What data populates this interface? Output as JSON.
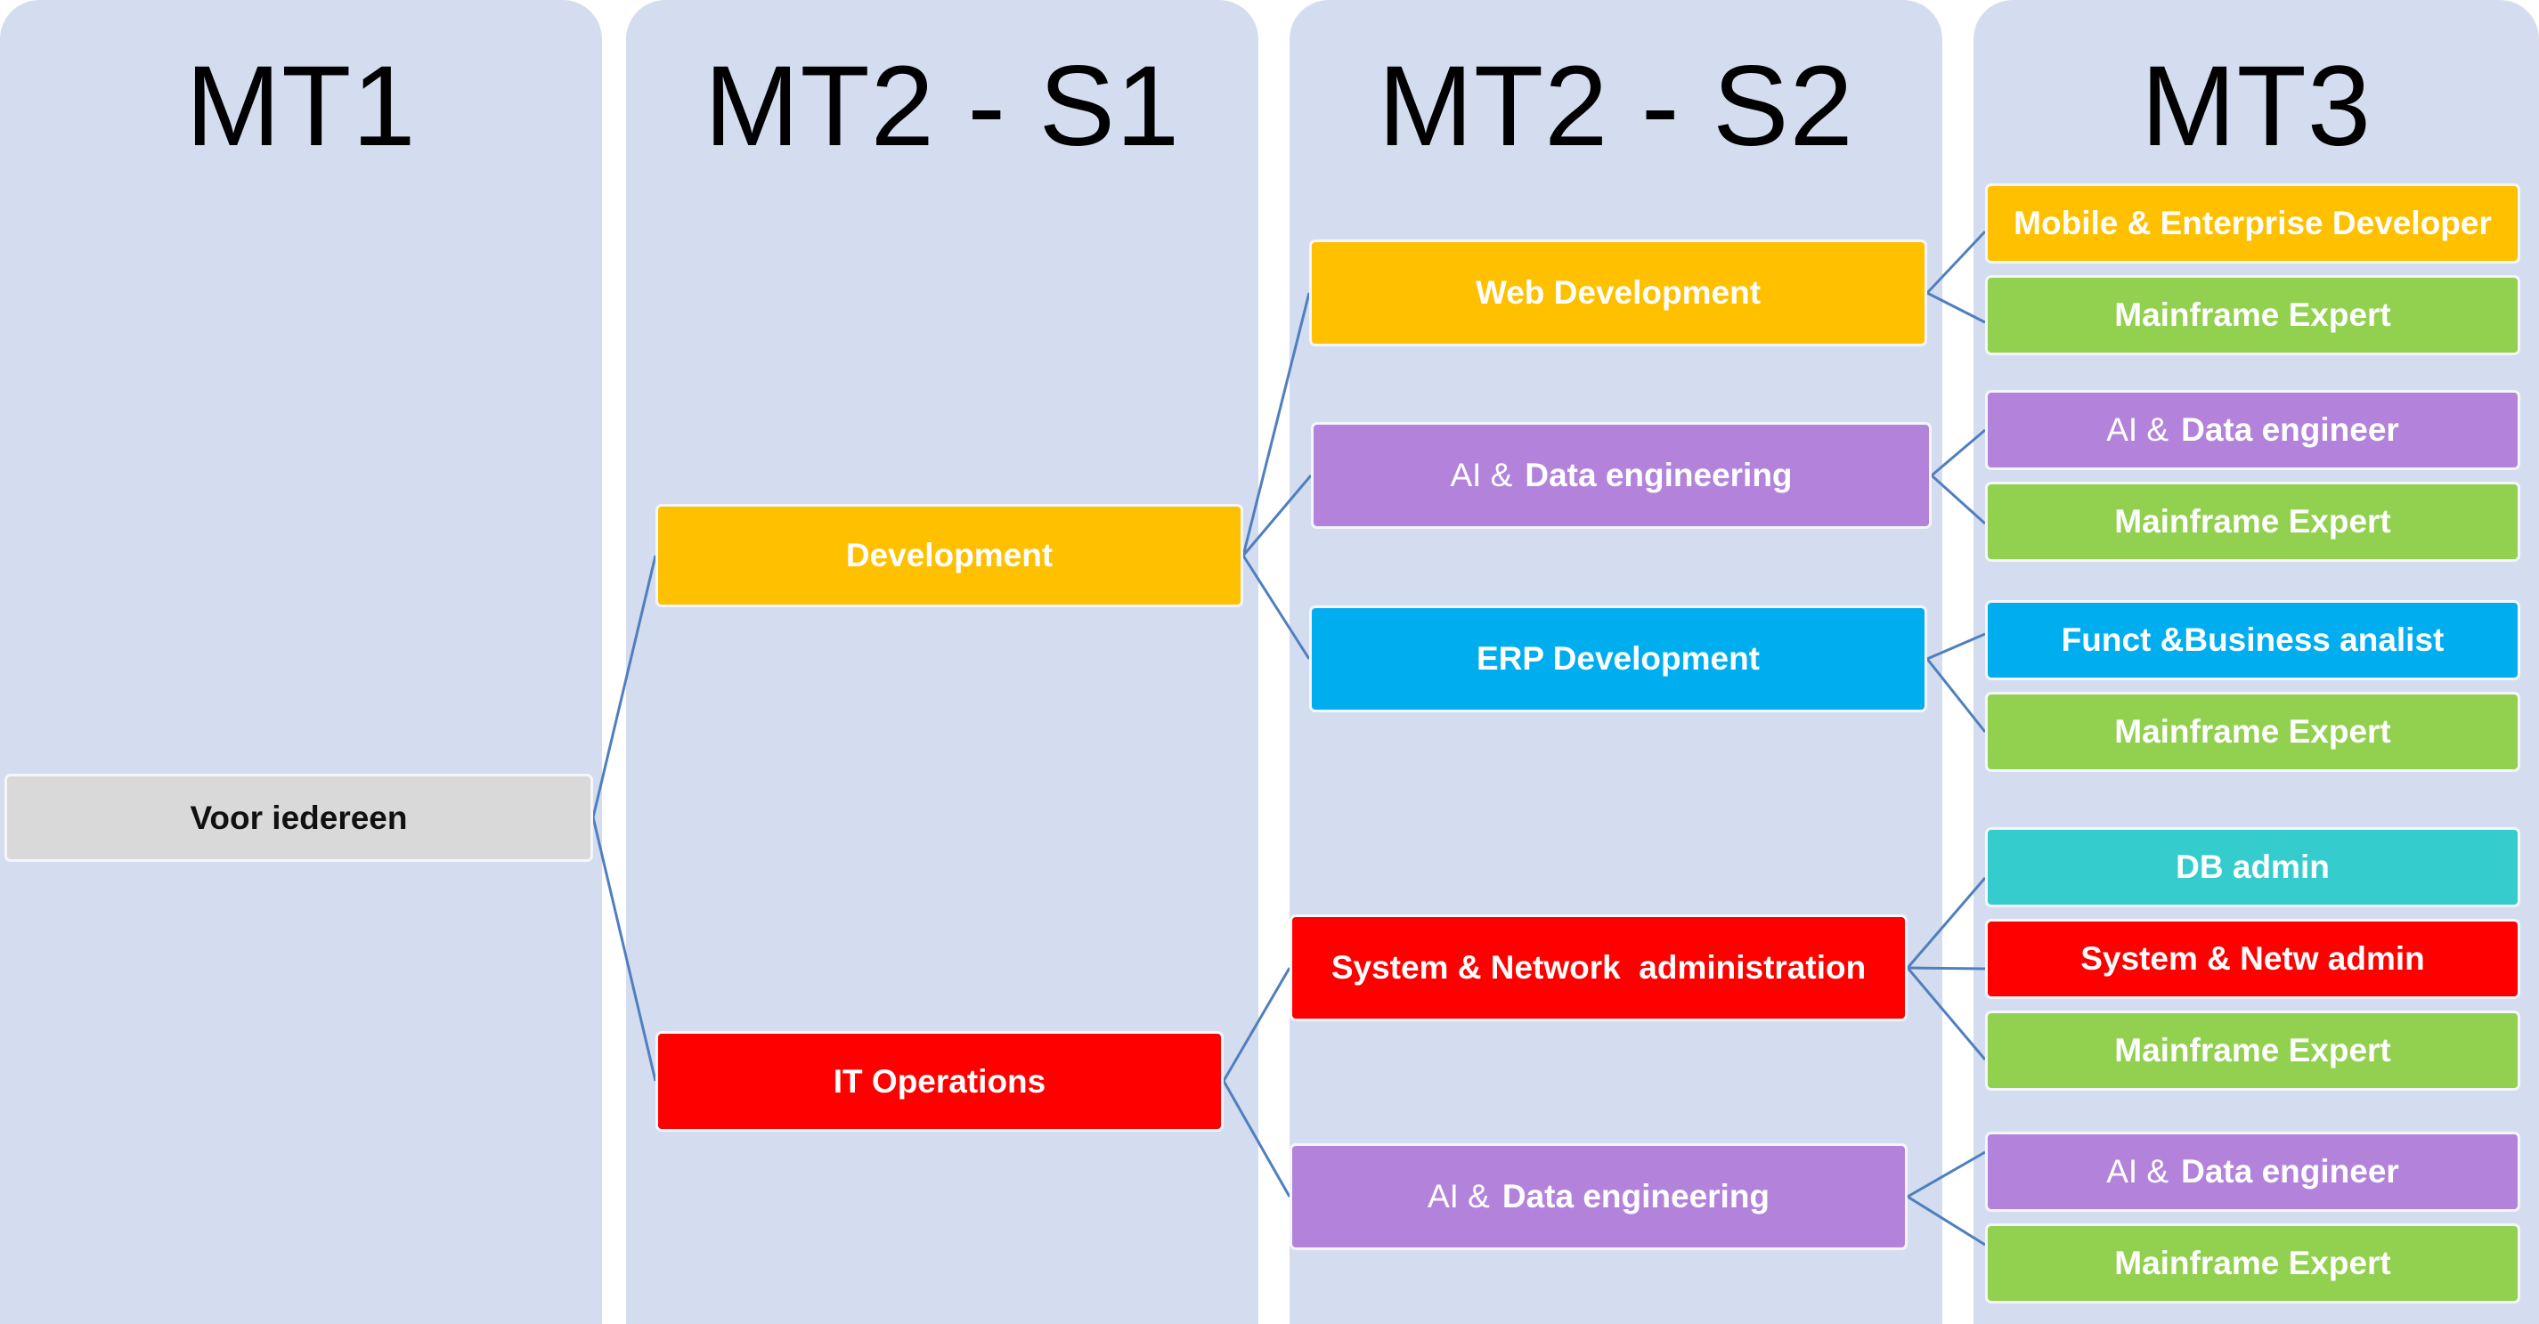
{
  "columns": [
    {
      "title": "MT1"
    },
    {
      "title": "MT2 - S1"
    },
    {
      "title": "MT2 - S2"
    },
    {
      "title": "MT3"
    }
  ],
  "mt1": {
    "label": "Voor iedereen"
  },
  "mt2s1": {
    "development": "Development",
    "it_operations": "IT Operations"
  },
  "mt2s2": {
    "web_development": "Web Development",
    "ai_data_1": {
      "prefix": "AI &",
      "label": "Data engineering"
    },
    "erp_development": "ERP Development",
    "sys_net_admin": "System & Network  administration",
    "ai_data_2": {
      "prefix": "AI &",
      "label": "Data engineering"
    }
  },
  "mt3": {
    "mobile_enterprise": "Mobile & Enterprise Developer",
    "mainframe_1": "Mainframe Expert",
    "ai_engineer_1": {
      "prefix": "AI &",
      "label": "Data engineer"
    },
    "mainframe_2": "Mainframe Expert",
    "funct_business": "Funct &Business analist",
    "mainframe_3": "Mainframe Expert",
    "db_admin": "DB admin",
    "sys_netw_admin": "System & Netw admin",
    "mainframe_4": "Mainframe Expert",
    "ai_engineer_2": {
      "prefix": "AI &",
      "label": "Data engineer"
    },
    "mainframe_5": "Mainframe Expert"
  },
  "colors": {
    "column_bg": "#d4ddef",
    "orange": "#ffc000",
    "purple": "#b383dc",
    "blue": "#00aeef",
    "teal": "#35cccd",
    "red": "#ff0000",
    "green": "#92d050",
    "gray": "#d9d9d9",
    "connector": "#4f7fbf"
  }
}
